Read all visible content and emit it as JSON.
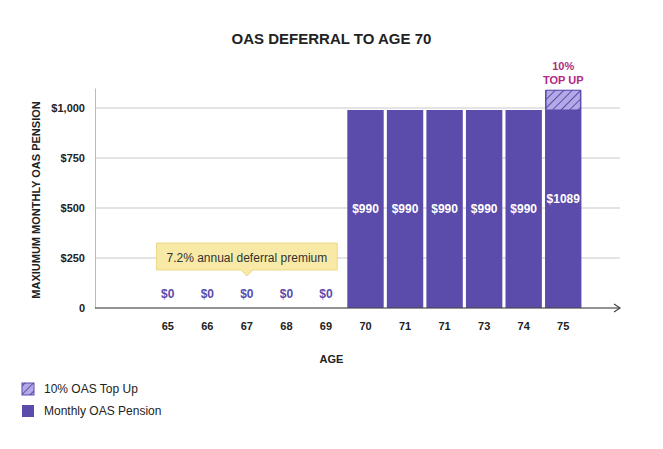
{
  "chart_data": {
    "type": "bar",
    "title": "OAS DEFERRAL TO AGE 70",
    "x_label": "AGE",
    "y_label": "MAXIUMUM MONTHLY OAS PENSION",
    "categories": [
      "65",
      "66",
      "67",
      "68",
      "69",
      "70",
      "71",
      "71",
      "73",
      "74",
      "75"
    ],
    "series": [
      {
        "name": "Monthly OAS Pension",
        "color": "#5b4bab",
        "values": [
          0,
          0,
          0,
          0,
          0,
          990,
          990,
          990,
          990,
          990,
          1089
        ],
        "data_labels": true,
        "value_labels": [
          "$0",
          "$0",
          "$0",
          "$0",
          "$0",
          "$990",
          "$990",
          "$990",
          "$990",
          "$990",
          "$1089"
        ]
      },
      {
        "name": "10% OAS Top Up",
        "color": "#b3a9e6",
        "values": [
          null,
          null,
          null,
          null,
          null,
          null,
          null,
          null,
          null,
          null,
          99
        ]
      }
    ],
    "ylim": [
      0,
      1100
    ],
    "yticks": [
      0,
      {
        "value": 250,
        "label": "$250"
      },
      {
        "value": 500,
        "label": "$500"
      },
      {
        "value": 750,
        "label": "$750"
      },
      {
        "value": 1000,
        "label": "$1,000"
      }
    ],
    "grid": true,
    "legend": "bottom-left",
    "annotations": [
      {
        "text": "7.2% annual deferral premium"
      },
      {
        "text": "10%\nTOP UP"
      }
    ]
  }
}
